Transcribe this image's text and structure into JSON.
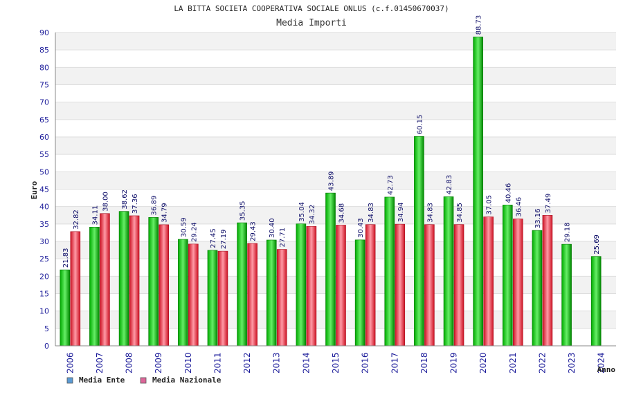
{
  "chart_data": {
    "type": "bar",
    "title": "LA BITTA SOCIETA COOPERATIVA SOCIALE ONLUS (c.f.01450670037)",
    "subtitle": "Media Importi",
    "xlabel": "Anno",
    "ylabel": "Euro",
    "ylim": [
      0,
      90
    ],
    "yticks": [
      0,
      5,
      10,
      15,
      20,
      25,
      30,
      35,
      40,
      45,
      50,
      55,
      60,
      65,
      70,
      75,
      80,
      85,
      90
    ],
    "grid": true,
    "legend_position": "bottom-left",
    "categories": [
      "2006",
      "2007",
      "2008",
      "2009",
      "2010",
      "2011",
      "2012",
      "2013",
      "2014",
      "2015",
      "2016",
      "2017",
      "2018",
      "2019",
      "2020",
      "2021",
      "2022",
      "2023",
      "2024"
    ],
    "series": [
      {
        "name": "Media Ente",
        "color": "#00aa00",
        "legend_color": "#5b9bd5",
        "values": [
          21.83,
          34.11,
          38.62,
          36.89,
          30.59,
          27.45,
          35.35,
          30.4,
          35.04,
          43.89,
          30.43,
          42.73,
          60.15,
          42.83,
          88.73,
          40.46,
          33.16,
          29.18,
          25.69
        ],
        "labels": [
          "21.83",
          "34.11",
          "38.62",
          "36.89",
          "30.59",
          "27.45",
          "35.35",
          "30.40",
          "35.04",
          "43.89",
          "30.43",
          "42.73",
          "60.15",
          "42.83",
          "88.73",
          "40.46",
          "33.16",
          "29.18",
          "25.69"
        ]
      },
      {
        "name": "Media Nazionale",
        "color": "#dd2233",
        "legend_color": "#dd6699",
        "values": [
          32.82,
          38.0,
          37.36,
          34.79,
          29.24,
          27.19,
          29.43,
          27.71,
          34.32,
          34.68,
          34.83,
          34.94,
          34.83,
          34.85,
          37.05,
          36.46,
          37.49,
          null,
          null
        ],
        "labels": [
          "32.82",
          "38.00",
          "37.36",
          "34.79",
          "29.24",
          "27.19",
          "29.43",
          "27.71",
          "34.32",
          "34.68",
          "34.83",
          "34.94",
          "34.83",
          "34.85",
          "37.05",
          "36.46",
          "37.49",
          null,
          null
        ]
      }
    ]
  }
}
